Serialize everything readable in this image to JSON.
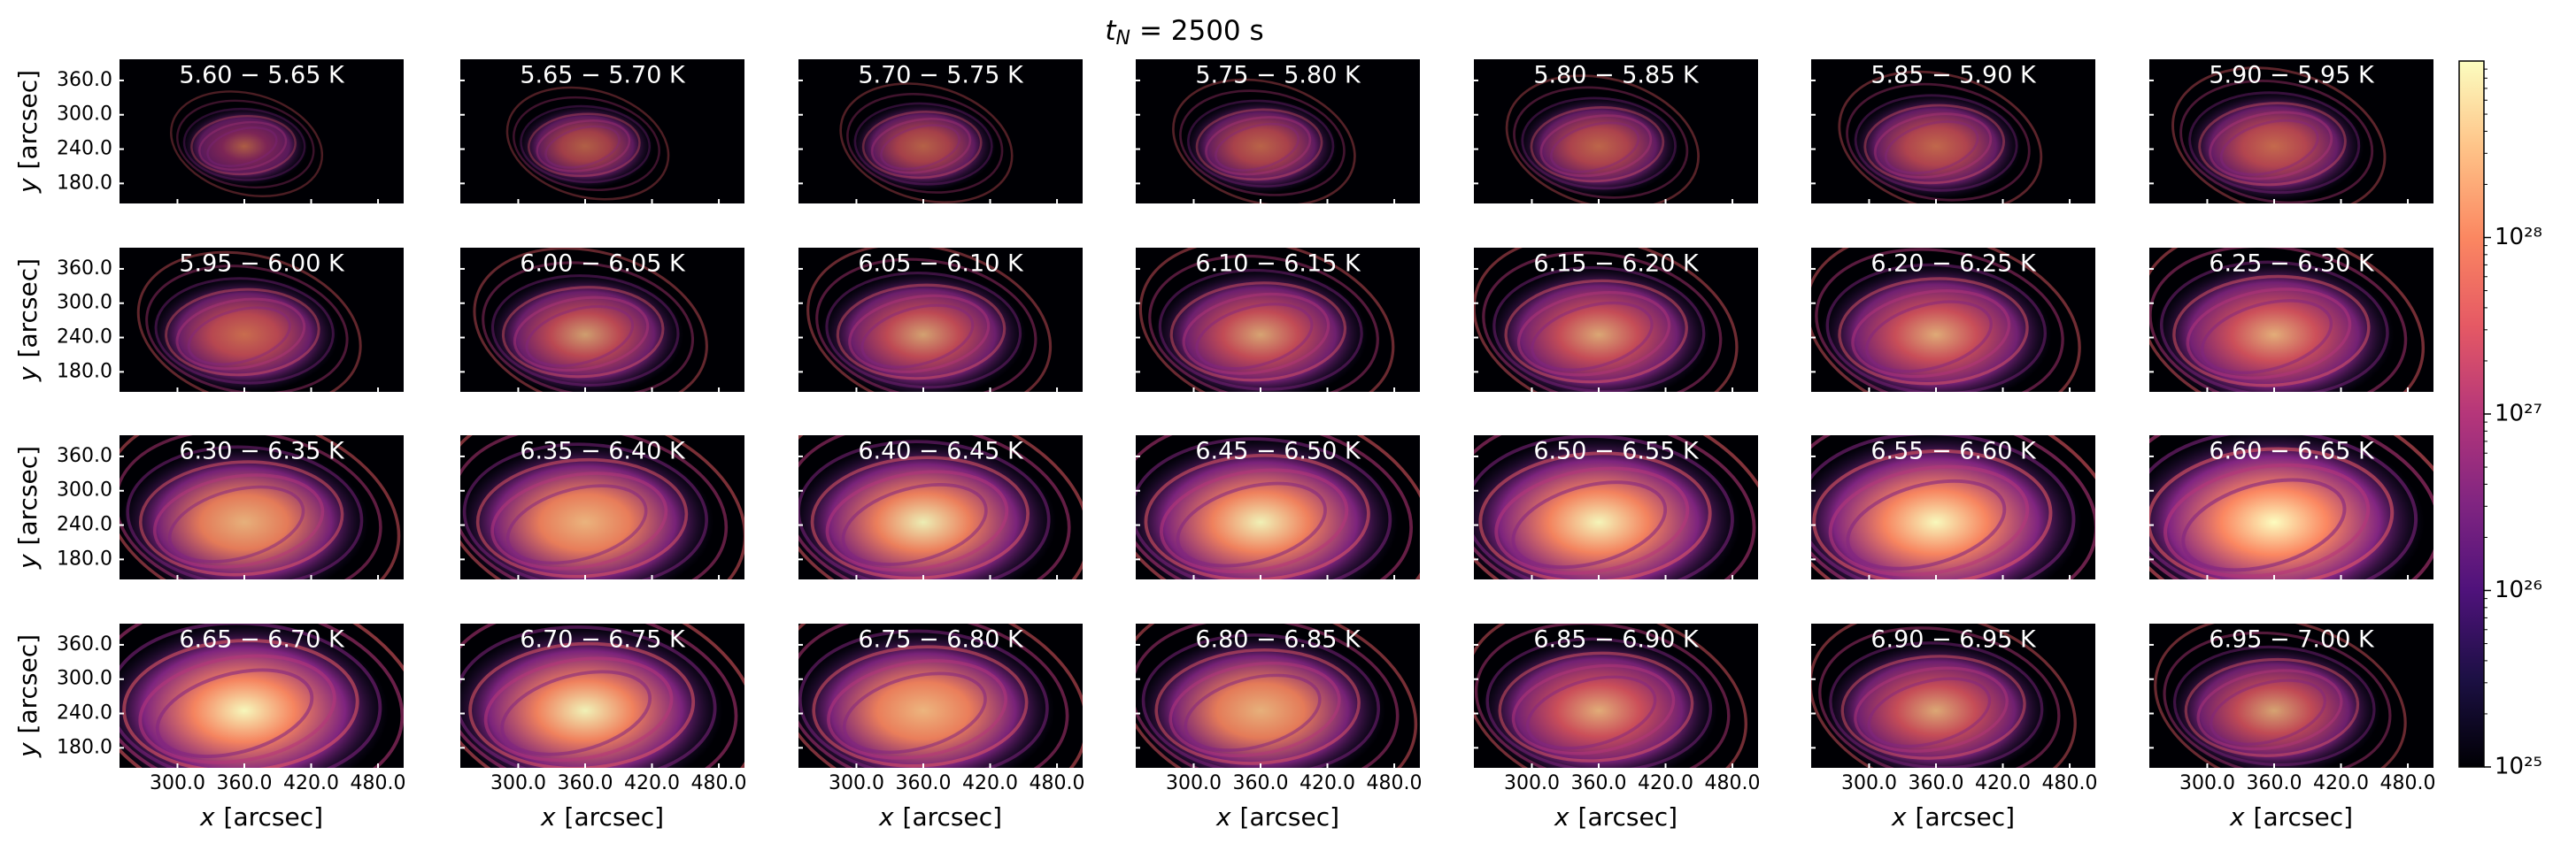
{
  "chart_data": {
    "type": "image-grid",
    "title": {
      "symbol": "t",
      "subscript": "N",
      "text": "= 2500 s"
    },
    "panels": [
      "5.60 − 5.65 K",
      "5.65 − 5.70 K",
      "5.70 − 5.75 K",
      "5.75 − 5.80 K",
      "5.80 − 5.85 K",
      "5.85 − 5.90 K",
      "5.90 − 5.95 K",
      "5.95 − 6.00 K",
      "6.00 − 6.05 K",
      "6.05 − 6.10 K",
      "6.10 − 6.15 K",
      "6.15 − 6.20 K",
      "6.20 − 6.25 K",
      "6.25 − 6.30 K",
      "6.30 − 6.35 K",
      "6.35 − 6.40 K",
      "6.40 − 6.45 K",
      "6.45 − 6.50 K",
      "6.50 − 6.55 K",
      "6.55 − 6.60 K",
      "6.60 − 6.65 K",
      "6.65 − 6.70 K",
      "6.70 − 6.75 K",
      "6.75 − 6.80 K",
      "6.80 − 6.85 K",
      "6.85 − 6.90 K",
      "6.90 − 6.95 K",
      "6.95 − 7.00 K"
    ],
    "xlabel": {
      "symbol": "x",
      "unit": "[arcsec]"
    },
    "ylabel": {
      "symbol": "y",
      "unit": "[arcsec]"
    },
    "xlim": [
      248,
      503
    ],
    "ylim": [
      145,
      397
    ],
    "xticks": [
      {
        "value": 300,
        "label": "300.0"
      },
      {
        "value": 360,
        "label": "360.0"
      },
      {
        "value": 420,
        "label": "420.0"
      },
      {
        "value": 480,
        "label": "480.0"
      }
    ],
    "yticks": [
      {
        "value": 180,
        "label": "180.0"
      },
      {
        "value": 240,
        "label": "240.0"
      },
      {
        "value": 300,
        "label": "300.0"
      },
      {
        "value": 360,
        "label": "360.0"
      }
    ],
    "colormap": "magma",
    "colorbar": {
      "scale": "log",
      "lim": [
        1e+25,
        1e+29
      ],
      "ticks": [
        {
          "value": 1e+25,
          "label": "10²⁵"
        },
        {
          "value": 1e+26,
          "label": "10²⁶"
        },
        {
          "value": 1e+27,
          "label": "10²⁷"
        },
        {
          "value": 1e+28,
          "label": "10²⁸"
        }
      ]
    }
  }
}
